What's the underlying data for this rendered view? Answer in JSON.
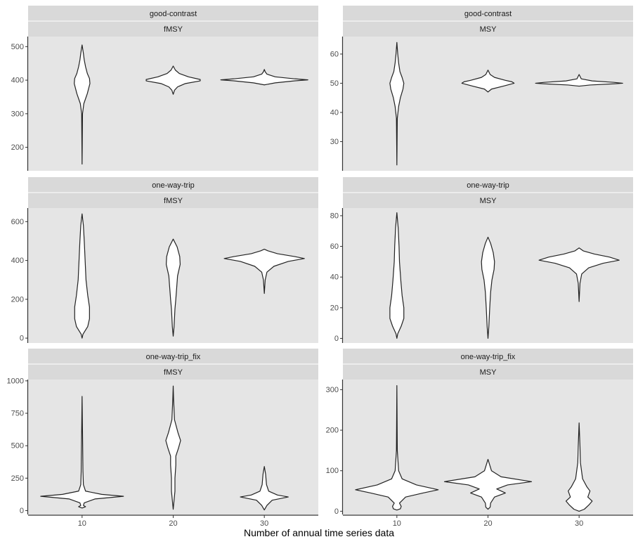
{
  "chart_data": {
    "type": "violin",
    "xlabel": "Number of annual time series data",
    "x_categories": [
      "10",
      "20",
      "30"
    ],
    "panel_bg": "#e5e5e5",
    "strip_bg": "#d9d9d9",
    "violin_fill": "#ffffff",
    "violin_stroke": "#222222",
    "panels": [
      {
        "strip_top": "good-contrast",
        "strip_bottom": "fMSY",
        "ylim": [
          130,
          530
        ],
        "yticks": [
          200,
          300,
          400,
          500
        ],
        "violins": [
          {
            "x": "10",
            "profile": [
              [
                150,
                0.0
              ],
              [
                300,
                0.01
              ],
              [
                330,
                0.04
              ],
              [
                360,
                0.12
              ],
              [
                390,
                0.18
              ],
              [
                405,
                0.17
              ],
              [
                420,
                0.12
              ],
              [
                440,
                0.08
              ],
              [
                460,
                0.05
              ],
              [
                480,
                0.03
              ],
              [
                505,
                0.0
              ]
            ]
          },
          {
            "x": "20",
            "profile": [
              [
                358,
                0.0
              ],
              [
                370,
                0.03
              ],
              [
                380,
                0.1
              ],
              [
                390,
                0.28
              ],
              [
                398,
                0.62
              ],
              [
                402,
                0.62
              ],
              [
                410,
                0.35
              ],
              [
                420,
                0.14
              ],
              [
                430,
                0.05
              ],
              [
                442,
                0.0
              ]
            ]
          },
          {
            "x": "30",
            "profile": [
              [
                386,
                0.0
              ],
              [
                392,
                0.25
              ],
              [
                398,
                0.7
              ],
              [
                401,
                1.0
              ],
              [
                404,
                0.7
              ],
              [
                410,
                0.25
              ],
              [
                418,
                0.06
              ],
              [
                425,
                0.02
              ],
              [
                432,
                0.0
              ]
            ]
          }
        ]
      },
      {
        "strip_top": "good-contrast",
        "strip_bottom": "MSY",
        "ylim": [
          20,
          66
        ],
        "yticks": [
          30,
          40,
          50,
          60
        ],
        "violins": [
          {
            "x": "10",
            "profile": [
              [
                22,
                0.0
              ],
              [
                38,
                0.01
              ],
              [
                42,
                0.04
              ],
              [
                45,
                0.08
              ],
              [
                48,
                0.14
              ],
              [
                50,
                0.16
              ],
              [
                52,
                0.12
              ],
              [
                54,
                0.07
              ],
              [
                57,
                0.04
              ],
              [
                60,
                0.02
              ],
              [
                64,
                0.0
              ]
            ]
          },
          {
            "x": "20",
            "profile": [
              [
                47,
                0.0
              ],
              [
                48,
                0.08
              ],
              [
                49,
                0.35
              ],
              [
                50,
                0.6
              ],
              [
                50.5,
                0.55
              ],
              [
                51,
                0.4
              ],
              [
                52,
                0.15
              ],
              [
                53,
                0.05
              ],
              [
                54.5,
                0.0
              ]
            ]
          },
          {
            "x": "30",
            "profile": [
              [
                49,
                0.0
              ],
              [
                49.4,
                0.25
              ],
              [
                49.8,
                0.8
              ],
              [
                50,
                1.0
              ],
              [
                50.3,
                0.8
              ],
              [
                50.8,
                0.3
              ],
              [
                51.5,
                0.05
              ],
              [
                53,
                0.0
              ]
            ]
          }
        ]
      },
      {
        "strip_top": "one-way-trip",
        "strip_bottom": "fMSY",
        "ylim": [
          -25,
          670
        ],
        "yticks": [
          0,
          200,
          400,
          600
        ],
        "violins": [
          {
            "x": "10",
            "profile": [
              [
                0,
                0.0
              ],
              [
                20,
                0.02
              ],
              [
                60,
                0.13
              ],
              [
                100,
                0.17
              ],
              [
                160,
                0.17
              ],
              [
                220,
                0.13
              ],
              [
                300,
                0.09
              ],
              [
                400,
                0.07
              ],
              [
                500,
                0.05
              ],
              [
                580,
                0.03
              ],
              [
                640,
                0.0
              ]
            ]
          },
          {
            "x": "20",
            "profile": [
              [
                10,
                0.0
              ],
              [
                60,
                0.02
              ],
              [
                150,
                0.04
              ],
              [
                200,
                0.06
              ],
              [
                260,
                0.08
              ],
              [
                320,
                0.1
              ],
              [
                380,
                0.16
              ],
              [
                420,
                0.15
              ],
              [
                470,
                0.09
              ],
              [
                510,
                0.0
              ]
            ]
          },
          {
            "x": "30",
            "profile": [
              [
                230,
                0.0
              ],
              [
                300,
                0.02
              ],
              [
                340,
                0.06
              ],
              [
                370,
                0.22
              ],
              [
                395,
                0.55
              ],
              [
                410,
                0.92
              ],
              [
                420,
                0.7
              ],
              [
                435,
                0.3
              ],
              [
                450,
                0.08
              ],
              [
                458,
                0.0
              ]
            ]
          }
        ]
      },
      {
        "strip_top": "one-way-trip",
        "strip_bottom": "MSY",
        "ylim": [
          -3,
          85
        ],
        "yticks": [
          0,
          20,
          40,
          60,
          80
        ],
        "violins": [
          {
            "x": "10",
            "profile": [
              [
                0,
                0.0
              ],
              [
                3,
                0.02
              ],
              [
                8,
                0.1
              ],
              [
                13,
                0.16
              ],
              [
                20,
                0.16
              ],
              [
                28,
                0.12
              ],
              [
                38,
                0.09
              ],
              [
                50,
                0.06
              ],
              [
                60,
                0.05
              ],
              [
                72,
                0.03
              ],
              [
                82,
                0.0
              ]
            ]
          },
          {
            "x": "20",
            "profile": [
              [
                0,
                0.0
              ],
              [
                8,
                0.02
              ],
              [
                20,
                0.04
              ],
              [
                30,
                0.06
              ],
              [
                38,
                0.09
              ],
              [
                45,
                0.14
              ],
              [
                50,
                0.15
              ],
              [
                56,
                0.12
              ],
              [
                62,
                0.06
              ],
              [
                66,
                0.0
              ]
            ]
          },
          {
            "x": "30",
            "profile": [
              [
                24,
                0.0
              ],
              [
                36,
                0.02
              ],
              [
                42,
                0.06
              ],
              [
                46,
                0.22
              ],
              [
                49,
                0.55
              ],
              [
                51,
                0.92
              ],
              [
                53,
                0.7
              ],
              [
                55,
                0.35
              ],
              [
                57,
                0.1
              ],
              [
                59,
                0.0
              ]
            ]
          }
        ]
      },
      {
        "strip_top": "one-way-trip_fix",
        "strip_bottom": "fMSY",
        "ylim": [
          -30,
          1010
        ],
        "yticks": [
          0,
          250,
          500,
          750,
          1000
        ],
        "violins": [
          {
            "x": "10",
            "profile": [
              [
                20,
                0.0
              ],
              [
                30,
                0.08
              ],
              [
                40,
                0.03
              ],
              [
                60,
                0.05
              ],
              [
                90,
                0.3
              ],
              [
                110,
                0.95
              ],
              [
                125,
                0.45
              ],
              [
                150,
                0.08
              ],
              [
                200,
                0.03
              ],
              [
                300,
                0.02
              ],
              [
                600,
                0.01
              ],
              [
                880,
                0.0
              ]
            ]
          },
          {
            "x": "20",
            "profile": [
              [
                10,
                0.0
              ],
              [
                80,
                0.02
              ],
              [
                150,
                0.04
              ],
              [
                250,
                0.04
              ],
              [
                350,
                0.06
              ],
              [
                420,
                0.06
              ],
              [
                480,
                0.12
              ],
              [
                540,
                0.17
              ],
              [
                600,
                0.11
              ],
              [
                700,
                0.03
              ],
              [
                850,
                0.01
              ],
              [
                960,
                0.0
              ]
            ]
          },
          {
            "x": "30",
            "profile": [
              [
                5,
                0.0
              ],
              [
                40,
                0.06
              ],
              [
                80,
                0.18
              ],
              [
                105,
                0.55
              ],
              [
                120,
                0.3
              ],
              [
                150,
                0.1
              ],
              [
                200,
                0.05
              ],
              [
                280,
                0.03
              ],
              [
                340,
                0.0
              ]
            ]
          }
        ]
      },
      {
        "strip_top": "one-way-trip_fix",
        "strip_bottom": "MSY",
        "ylim": [
          -8,
          325
        ],
        "yticks": [
          0,
          100,
          200,
          300
        ],
        "violins": [
          {
            "x": "10",
            "profile": [
              [
                3,
                0.0
              ],
              [
                6,
                0.08
              ],
              [
                12,
                0.1
              ],
              [
                20,
                0.06
              ],
              [
                35,
                0.2
              ],
              [
                45,
                0.6
              ],
              [
                53,
                0.95
              ],
              [
                65,
                0.45
              ],
              [
                80,
                0.12
              ],
              [
                100,
                0.04
              ],
              [
                150,
                0.01
              ],
              [
                310,
                0.0
              ]
            ]
          },
          {
            "x": "20",
            "profile": [
              [
                5,
                0.0
              ],
              [
                10,
                0.05
              ],
              [
                20,
                0.06
              ],
              [
                35,
                0.15
              ],
              [
                45,
                0.4
              ],
              [
                55,
                0.2
              ],
              [
                65,
                0.45
              ],
              [
                73,
                1.0
              ],
              [
                85,
                0.3
              ],
              [
                100,
                0.08
              ],
              [
                128,
                0.0
              ]
            ]
          },
          {
            "x": "30",
            "profile": [
              [
                0,
                0.0
              ],
              [
                5,
                0.12
              ],
              [
                15,
                0.22
              ],
              [
                25,
                0.3
              ],
              [
                35,
                0.2
              ],
              [
                50,
                0.25
              ],
              [
                60,
                0.18
              ],
              [
                80,
                0.08
              ],
              [
                120,
                0.03
              ],
              [
                160,
                0.02
              ],
              [
                218,
                0.0
              ]
            ]
          }
        ]
      }
    ]
  }
}
